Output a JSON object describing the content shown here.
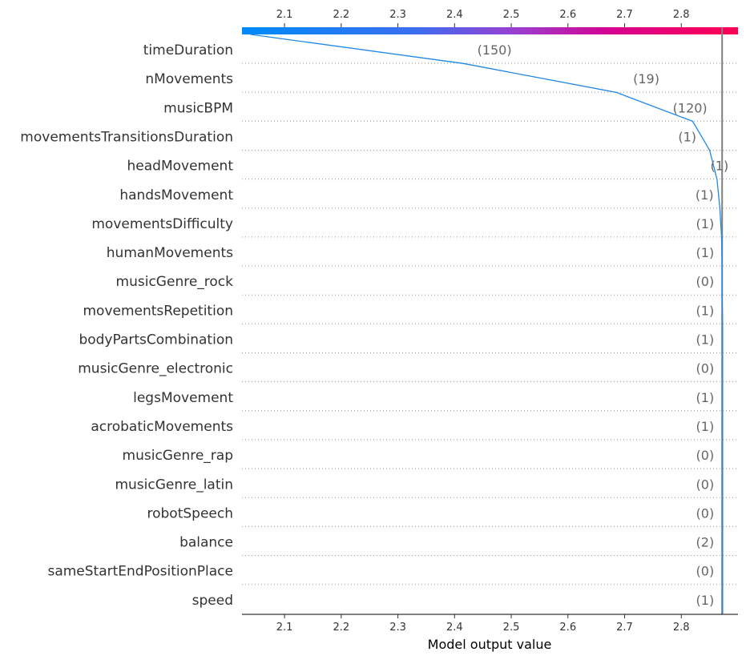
{
  "chart_data": {
    "type": "line",
    "subtype": "shap-decision-plot",
    "xlabel": "Model output value",
    "xlim": [
      2.025,
      2.9
    ],
    "xticks": [
      2.1,
      2.2,
      2.3,
      2.4,
      2.5,
      2.6,
      2.7,
      2.8
    ],
    "tick_labels": [
      "2.1",
      "2.2",
      "2.3",
      "2.4",
      "2.5",
      "2.6",
      "2.7",
      "2.8"
    ],
    "base_value": 2.872,
    "colorbar": {
      "from": "#008bfb",
      "to": "#ff0051"
    },
    "line_color": "#1e88e5",
    "grid": "dotted horizontal",
    "features": [
      {
        "name": "timeDuration",
        "value": "(150)"
      },
      {
        "name": "nMovements",
        "value": "(19)"
      },
      {
        "name": "musicBPM",
        "value": "(120)"
      },
      {
        "name": "movementsTransitionsDuration",
        "value": "(1)"
      },
      {
        "name": "headMovement",
        "value": "(1)"
      },
      {
        "name": "handsMovement",
        "value": "(1)"
      },
      {
        "name": "movementsDifficulty",
        "value": "(1)"
      },
      {
        "name": "humanMovements",
        "value": "(1)"
      },
      {
        "name": "musicGenre_rock",
        "value": "(0)"
      },
      {
        "name": "movementsRepetition",
        "value": "(1)"
      },
      {
        "name": "bodyPartsCombination",
        "value": "(1)"
      },
      {
        "name": "musicGenre_electronic",
        "value": "(0)"
      },
      {
        "name": "legsMovement",
        "value": "(1)"
      },
      {
        "name": "acrobaticMovements",
        "value": "(1)"
      },
      {
        "name": "musicGenre_rap",
        "value": "(0)"
      },
      {
        "name": "musicGenre_latin",
        "value": "(0)"
      },
      {
        "name": "robotSpeech",
        "value": "(0)"
      },
      {
        "name": "balance",
        "value": "(2)"
      },
      {
        "name": "sameStartEndPositionPlace",
        "value": "(0)"
      },
      {
        "name": "speed",
        "value": "(1)"
      }
    ],
    "path": [
      2.04,
      2.415,
      2.685,
      2.82,
      2.85,
      2.863,
      2.868,
      2.871,
      2.872,
      2.872,
      2.873,
      2.873,
      2.873,
      2.873,
      2.873,
      2.873,
      2.873,
      2.873,
      2.873,
      2.873,
      2.873
    ]
  }
}
